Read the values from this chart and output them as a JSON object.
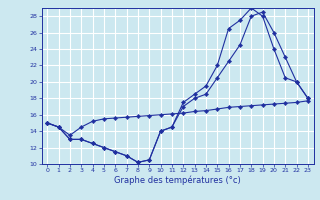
{
  "xlabel": "Graphe des températures (°c)",
  "line_color": "#2030a0",
  "bg_color": "#cce8f0",
  "grid_color": "#ffffff",
  "xlim": [
    -0.5,
    23.5
  ],
  "ylim": [
    10,
    29
  ],
  "yticks": [
    10,
    12,
    14,
    16,
    18,
    20,
    22,
    24,
    26,
    28
  ],
  "xticks": [
    0,
    1,
    2,
    3,
    4,
    5,
    6,
    7,
    8,
    9,
    10,
    11,
    12,
    13,
    14,
    15,
    16,
    17,
    18,
    19,
    20,
    21,
    22,
    23
  ],
  "line1_x": [
    0,
    1,
    2,
    3,
    4,
    5,
    6,
    7,
    8,
    9,
    10,
    11,
    12,
    13,
    14,
    15,
    16,
    17,
    18,
    19,
    20,
    21,
    22,
    23
  ],
  "line1_y": [
    15.0,
    14.5,
    13.0,
    13.0,
    12.5,
    12.0,
    11.5,
    11.0,
    10.2,
    10.5,
    14.0,
    14.5,
    17.5,
    18.5,
    19.5,
    22.0,
    26.5,
    27.5,
    29.0,
    28.0,
    24.0,
    20.5,
    20.0,
    18.0
  ],
  "line2_x": [
    0,
    1,
    2,
    3,
    4,
    5,
    6,
    7,
    8,
    9,
    10,
    11,
    12,
    13,
    14,
    15,
    16,
    17,
    18,
    19,
    20,
    21,
    22,
    23
  ],
  "line2_y": [
    15.0,
    14.5,
    13.0,
    13.0,
    12.5,
    12.0,
    11.5,
    11.0,
    10.2,
    10.5,
    14.0,
    14.5,
    17.0,
    18.0,
    18.5,
    20.5,
    22.5,
    24.5,
    28.0,
    28.5,
    26.0,
    23.0,
    20.0,
    18.0
  ],
  "line3_x": [
    0,
    1,
    2,
    3,
    4,
    5,
    6,
    7,
    8,
    9,
    10,
    11,
    12,
    13,
    14,
    15,
    16,
    17,
    18,
    19,
    20,
    21,
    22,
    23
  ],
  "line3_y": [
    15.0,
    14.5,
    13.5,
    14.5,
    15.2,
    15.5,
    15.6,
    15.7,
    15.8,
    15.9,
    16.0,
    16.1,
    16.2,
    16.4,
    16.5,
    16.7,
    16.9,
    17.0,
    17.1,
    17.2,
    17.3,
    17.4,
    17.5,
    17.7
  ]
}
